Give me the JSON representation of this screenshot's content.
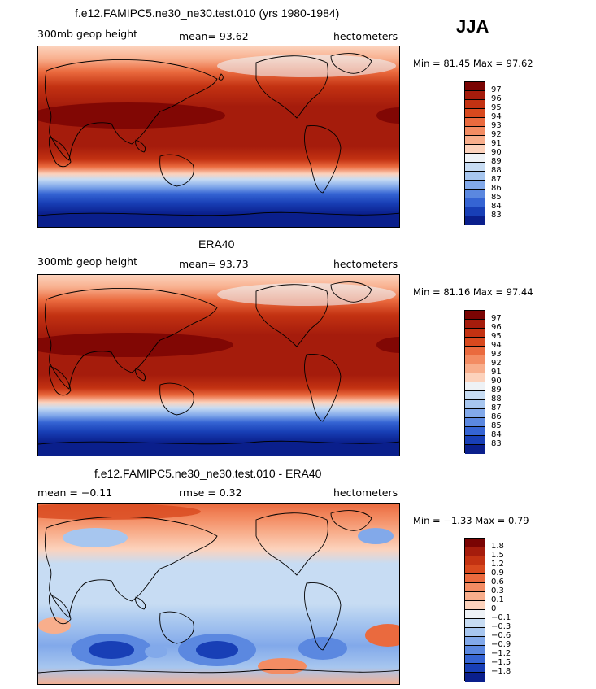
{
  "season": "JJA",
  "panels": [
    {
      "title": "f.e12.FAMIPC5.ne30_ne30.test.010 (yrs 1980-1984)",
      "left_label": "300mb geop height",
      "center_label": "mean=  93.62",
      "right_label": "hectometers",
      "minmax": "Min =  81.45 Max =  97.62",
      "colorbar": {
        "labels": [
          "97",
          "96",
          "95",
          "94",
          "93",
          "92",
          "91",
          "90",
          "89",
          "88",
          "87",
          "86",
          "85",
          "84",
          "83"
        ],
        "colors": [
          "#7a0403",
          "#a51c0c",
          "#c33212",
          "#d8491e",
          "#ea6a3e",
          "#f38c63",
          "#f8ae8c",
          "#fcd2bc",
          "#eef2f6",
          "#c7dcf3",
          "#a7c6ef",
          "#82a9ea",
          "#5b88e0",
          "#3564d3",
          "#183fb6",
          "#0a1f8c"
        ]
      },
      "chart_data": {
        "type": "heatmap",
        "variable": "300mb geop height",
        "units": "hectometers",
        "mean": 93.62,
        "min": 81.45,
        "max": 97.62
      }
    },
    {
      "title": "ERA40",
      "left_label": "300mb geop height",
      "center_label": "mean=  93.73",
      "right_label": "hectometers",
      "minmax": "Min =  81.16 Max =  97.44",
      "colorbar": {
        "labels": [
          "97",
          "96",
          "95",
          "94",
          "93",
          "92",
          "91",
          "90",
          "89",
          "88",
          "87",
          "86",
          "85",
          "84",
          "83"
        ],
        "colors": [
          "#7a0403",
          "#a51c0c",
          "#c33212",
          "#d8491e",
          "#ea6a3e",
          "#f38c63",
          "#f8ae8c",
          "#fcd2bc",
          "#eef2f6",
          "#c7dcf3",
          "#a7c6ef",
          "#82a9ea",
          "#5b88e0",
          "#3564d3",
          "#183fb6",
          "#0a1f8c"
        ]
      },
      "chart_data": {
        "type": "heatmap",
        "variable": "300mb geop height",
        "units": "hectometers",
        "mean": 93.73,
        "min": 81.16,
        "max": 97.44
      }
    },
    {
      "title": "f.e12.FAMIPC5.ne30_ne30.test.010 - ERA40",
      "left_label": "mean =  −0.11",
      "center_label": "rmse =    0.32",
      "right_label": "hectometers",
      "minmax": "Min =  −1.33 Max =    0.79",
      "colorbar": {
        "labels": [
          "1.8",
          "1.5",
          "1.2",
          "0.9",
          "0.6",
          "0.3",
          "0.1",
          "0",
          "−0.1",
          "−0.3",
          "−0.6",
          "−0.9",
          "−1.2",
          "−1.5",
          "−1.8"
        ],
        "colors": [
          "#7a0403",
          "#a51c0c",
          "#c33212",
          "#d8491e",
          "#ea6a3e",
          "#f38c63",
          "#f8ae8c",
          "#fcd2bc",
          "#eef2f6",
          "#c7dcf3",
          "#a7c6ef",
          "#82a9ea",
          "#5b88e0",
          "#3564d3",
          "#183fb6",
          "#0a1f8c"
        ]
      },
      "chart_data": {
        "type": "heatmap",
        "variable": "difference",
        "units": "hectometers",
        "mean": -0.11,
        "rmse": 0.32,
        "min": -1.33,
        "max": 0.79
      }
    }
  ]
}
